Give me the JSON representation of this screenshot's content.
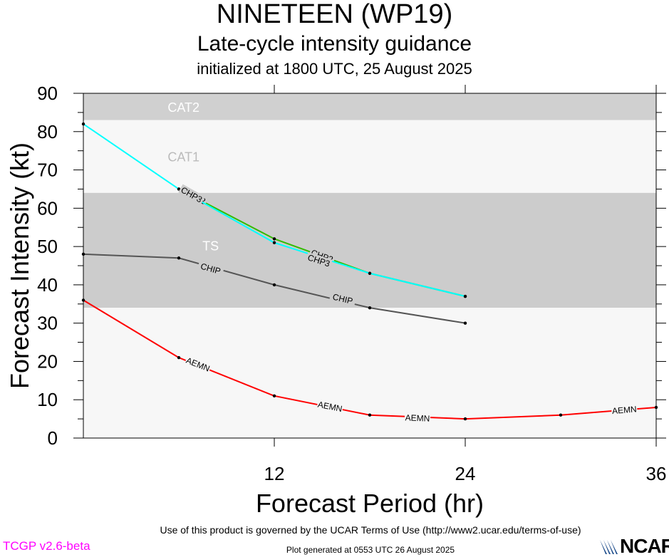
{
  "header": {
    "storm_title": "NINETEEN (WP19)",
    "subtitle": "Late-cycle intensity guidance",
    "init_line": "initialized at 1800 UTC, 25 August 2025"
  },
  "footer": {
    "terms": "Use of this product is governed by the UCAR Terms of Use (http://www2.ucar.edu/terms-of-use)",
    "generated": "Plot generated at 0553 UTC   26 August 2025",
    "version": "TCGP v2.6-beta",
    "logo_text": "NCAR"
  },
  "chart_data": {
    "type": "line",
    "title": "NINETEEN (WP19)",
    "xlabel": "Forecast Period (hr)",
    "ylabel": "Forecast Intensity (kt)",
    "xlim": [
      0,
      36
    ],
    "ylim": [
      0,
      90
    ],
    "x_ticks": [
      12,
      24,
      36
    ],
    "y_ticks": [
      0,
      10,
      20,
      30,
      40,
      50,
      60,
      70,
      80,
      90
    ],
    "grid": false,
    "bands": [
      {
        "label": "CAT2",
        "from": 83,
        "to": 90,
        "color": "#d0d0d0"
      },
      {
        "label": "CAT1",
        "from": 64,
        "to": 83,
        "color": "#f7f7f7"
      },
      {
        "label": "TS",
        "from": 34,
        "to": 64,
        "color": "#cccccc"
      },
      {
        "label": "",
        "from": 0,
        "to": 34,
        "color": "#f7f7f7"
      }
    ],
    "series": [
      {
        "name": "AEMN",
        "color": "#ff0000",
        "points": [
          [
            0,
            36
          ],
          [
            6,
            21
          ],
          [
            12,
            11
          ],
          [
            18,
            6
          ],
          [
            24,
            5
          ],
          [
            30,
            6
          ],
          [
            36,
            8
          ]
        ],
        "label_positions": [
          [
            7.2,
            19.2
          ],
          [
            15.5,
            8.2
          ],
          [
            21,
            5.2
          ],
          [
            34,
            7.3
          ]
        ]
      },
      {
        "name": "CHIP",
        "color": "#555555",
        "points": [
          [
            0,
            48
          ],
          [
            6,
            47
          ],
          [
            12,
            40
          ],
          [
            18,
            34
          ],
          [
            24,
            30
          ]
        ],
        "label_positions": [
          [
            8,
            44.2
          ],
          [
            16.3,
            36.3
          ]
        ]
      },
      {
        "name": "CHP2",
        "color": "#33bb00",
        "points": [
          [
            6,
            65
          ],
          [
            12,
            52
          ],
          [
            18,
            43
          ],
          [
            24,
            37
          ]
        ],
        "label_positions": [
          [
            7,
            63
          ],
          [
            15,
            47.5
          ]
        ]
      },
      {
        "name": "CHP3",
        "color": "#00ffff",
        "points": [
          [
            0,
            82
          ],
          [
            6,
            65
          ],
          [
            12,
            51
          ],
          [
            18,
            43
          ],
          [
            24,
            37
          ]
        ],
        "label_positions": [
          [
            6.8,
            63.5
          ],
          [
            14.8,
            46.3
          ]
        ]
      }
    ]
  },
  "colors": {
    "background": "#ffffff",
    "axis": "#000000",
    "version_text": "#ff00ff",
    "logo_mark": "#1a4a8a"
  }
}
